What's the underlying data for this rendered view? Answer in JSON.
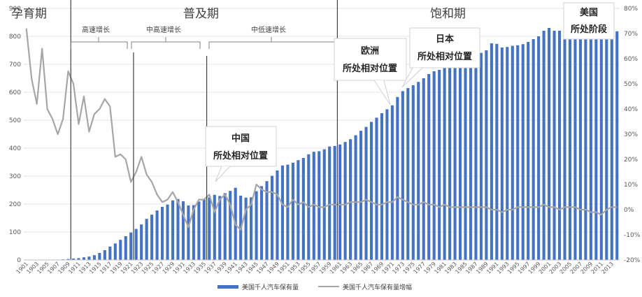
{
  "chart_data": {
    "type": "bar",
    "y_left_range": [
      0,
      900
    ],
    "y_left_ticks": [
      "0",
      "100",
      "200",
      "300",
      "400",
      "500",
      "600",
      "700",
      "800",
      "900"
    ],
    "y_right_range": [
      -20,
      80
    ],
    "y_right_ticks": [
      "-20%",
      "-10%",
      "0%",
      "10%",
      "20%",
      "30%",
      "40%",
      "50%",
      "60%",
      "70%",
      "80%"
    ],
    "x_tick_labels": [
      "1901",
      "1903",
      "1905",
      "1907",
      "1909",
      "1911",
      "1913",
      "1915",
      "1917",
      "1919",
      "1921",
      "1923",
      "1925",
      "1927",
      "1929",
      "1931",
      "1933",
      "1935",
      "1937",
      "1939",
      "1941",
      "1943",
      "1945",
      "1947",
      "1949",
      "1951",
      "1953",
      "1955",
      "1957",
      "1959",
      "1961",
      "1963",
      "1965",
      "1967",
      "1969",
      "1971",
      "1973",
      "1975",
      "1977",
      "1979",
      "1981",
      "1983",
      "1985",
      "1987",
      "1989",
      "1991",
      "1993",
      "1995",
      "1997",
      "1999",
      "2001",
      "2003",
      "2005",
      "2007",
      "2009",
      "2011",
      "2013"
    ],
    "years_start": 1901,
    "years_end": 2014,
    "series": [
      {
        "name": "美国千人汽车保有量",
        "type": "bar",
        "axis": "left",
        "color": "#4472C4",
        "values": [
          0.3,
          0.4,
          0.5,
          0.6,
          0.8,
          1.2,
          1.5,
          2.1,
          3.4,
          5,
          6.5,
          9.5,
          12,
          17,
          25,
          35,
          48,
          59,
          72,
          85,
          98,
          111,
          127,
          147,
          162,
          177,
          190,
          198,
          213,
          218,
          210,
          195,
          196,
          209,
          217,
          224,
          233,
          229,
          239,
          247,
          258,
          230,
          223,
          224,
          246,
          264,
          282,
          301,
          320,
          338,
          341,
          348,
          357,
          365,
          378,
          387,
          389,
          396,
          406,
          408,
          413,
          422,
          432,
          446,
          462,
          476,
          494,
          509,
          525,
          539,
          553,
          583,
          604,
          615,
          625,
          637,
          650,
          665,
          675,
          680,
          690,
          700,
          710,
          717,
          724,
          732,
          737,
          741,
          750,
          775,
          773,
          760,
          762,
          766,
          768,
          772,
          780,
          790,
          800,
          820,
          830,
          820,
          820,
          825,
          828,
          826,
          830,
          820,
          810,
          800,
          798,
          808,
          812,
          818
        ]
      },
      {
        "name": "美国千人汽车保有量增幅",
        "type": "line",
        "axis": "right",
        "color": "#A6A6A6",
        "values": [
          72,
          52,
          42,
          64,
          40,
          36,
          30,
          36,
          55,
          50,
          34,
          45,
          31,
          38,
          40,
          44,
          41,
          21,
          22,
          20,
          11,
          15,
          21,
          14,
          11,
          6,
          3,
          4,
          7,
          3,
          -2,
          -7,
          0,
          4,
          4,
          6,
          -1,
          4,
          6,
          2,
          -6,
          -8,
          0,
          2,
          10,
          8,
          7,
          7,
          6,
          2,
          1,
          4,
          2,
          3,
          1,
          2,
          1,
          1,
          2,
          2,
          2,
          2,
          3,
          3,
          3,
          4,
          3,
          2,
          2,
          3,
          3,
          5,
          4,
          3,
          2,
          2,
          3,
          2,
          2,
          1,
          2,
          1,
          1,
          1,
          1,
          1,
          1,
          1,
          1,
          0,
          0,
          -1,
          0,
          0,
          1,
          1,
          1,
          1,
          1,
          2,
          1,
          1,
          0,
          1,
          1,
          1,
          0,
          0,
          -1,
          -1,
          -2,
          0,
          1,
          1
        ]
      }
    ],
    "phases": [
      {
        "label": "孕育期"
      },
      {
        "label": "普及期"
      },
      {
        "label": "饱和期"
      }
    ],
    "sub_phases": [
      {
        "label": "高速增长"
      },
      {
        "label": "中高速增长"
      },
      {
        "label": "中低速增长"
      }
    ],
    "callouts": [
      {
        "line1": "中国",
        "line2": "所处相对位置"
      },
      {
        "line1": "欧洲",
        "line2": "所处相对位置"
      },
      {
        "line1": "日本",
        "line2": "所处相对位置"
      },
      {
        "line1": "美国",
        "line2": "所处阶段"
      }
    ]
  }
}
